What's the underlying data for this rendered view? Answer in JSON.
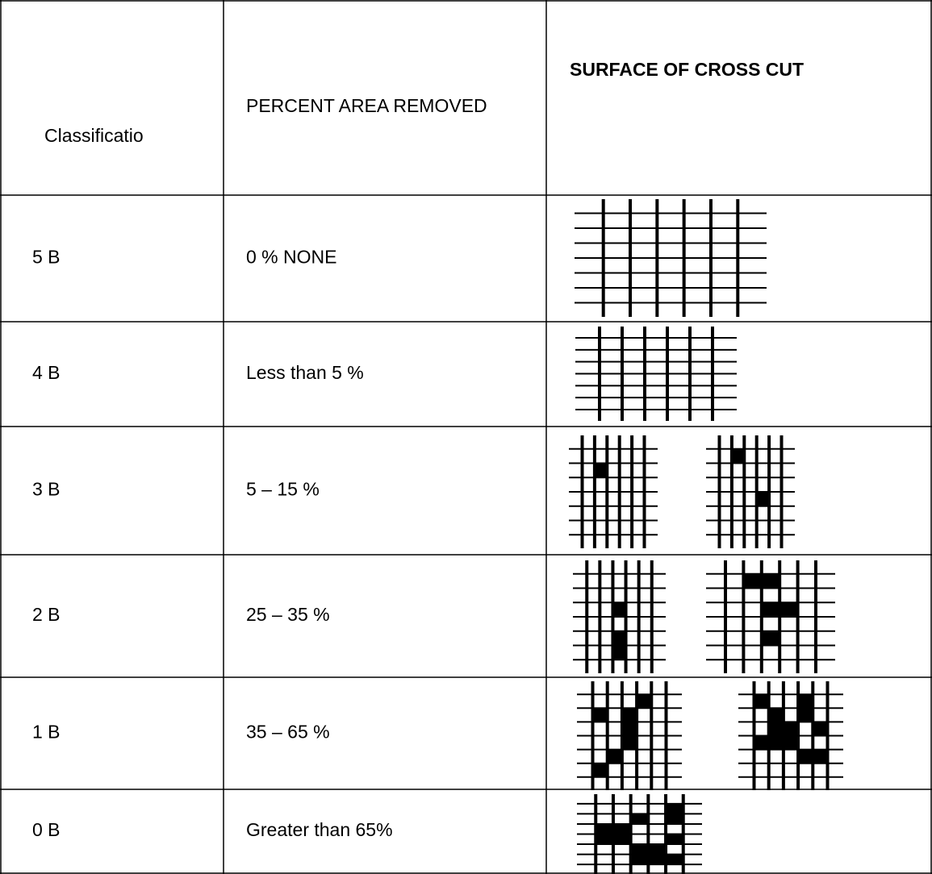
{
  "table": {
    "header": [
      "Classificatio",
      "PERCENT AREA REMOVED",
      "SURFACE OF CROSS CUT"
    ],
    "rows": [
      [
        "5 B",
        "0 % NONE"
      ],
      [
        "4 B",
        "Less than 5 %"
      ],
      [
        "3 B",
        "5 – 15 %"
      ],
      [
        "2 B",
        "25 – 35 %"
      ],
      [
        "1 B",
        "35 – 65 %"
      ],
      [
        "0 B",
        "Greater than 65%"
      ]
    ]
  }
}
